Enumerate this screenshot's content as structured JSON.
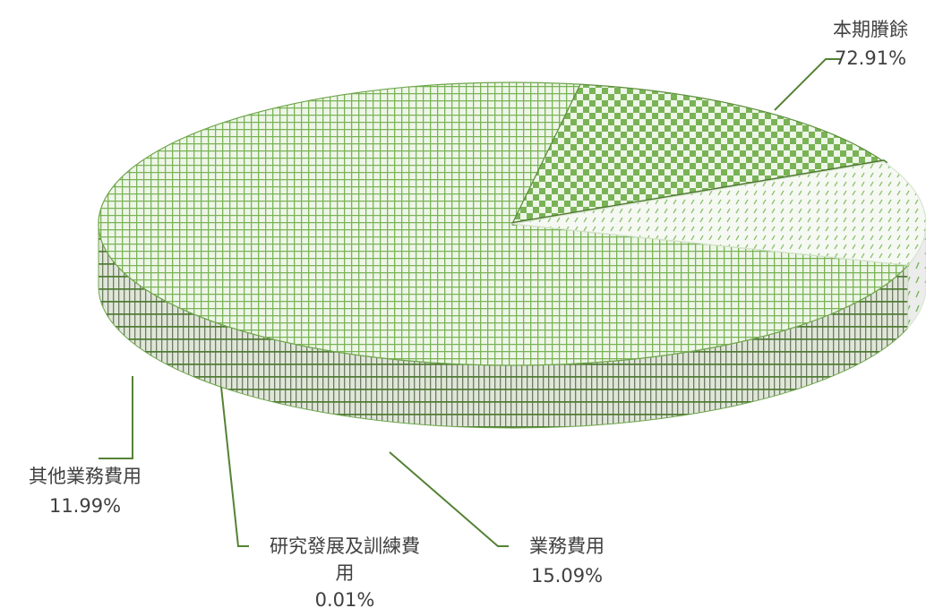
{
  "chart_data": {
    "type": "pie",
    "variant": "3d",
    "slices": [
      {
        "label": "本期賸餘",
        "value": 72.91,
        "display": "72.91%",
        "pattern": "fine-grid",
        "color": "#70ad47"
      },
      {
        "label": "業務費用",
        "value": 15.09,
        "display": "15.09%",
        "pattern": "checker",
        "color": "#70ad47"
      },
      {
        "label": "研究發展及訓練費用",
        "value": 0.01,
        "display": "0.01%",
        "pattern": "solid",
        "color": "#5a8a38"
      },
      {
        "label": "其他業務費用",
        "value": 11.99,
        "display": "11.99%",
        "pattern": "diagonal-dash",
        "color": "#70ad47"
      }
    ],
    "labels": {
      "s0_line1": "本期賸餘",
      "s0_line2": "72.91%",
      "s1_line1": "業務費用",
      "s1_line2": "15.09%",
      "s2_line1": "研究發展及訓練費",
      "s2_line2": "用",
      "s2_line3": "0.01%",
      "s3_line1": "其他業務費用",
      "s3_line2": "11.99%"
    },
    "legend": "none",
    "title": ""
  }
}
